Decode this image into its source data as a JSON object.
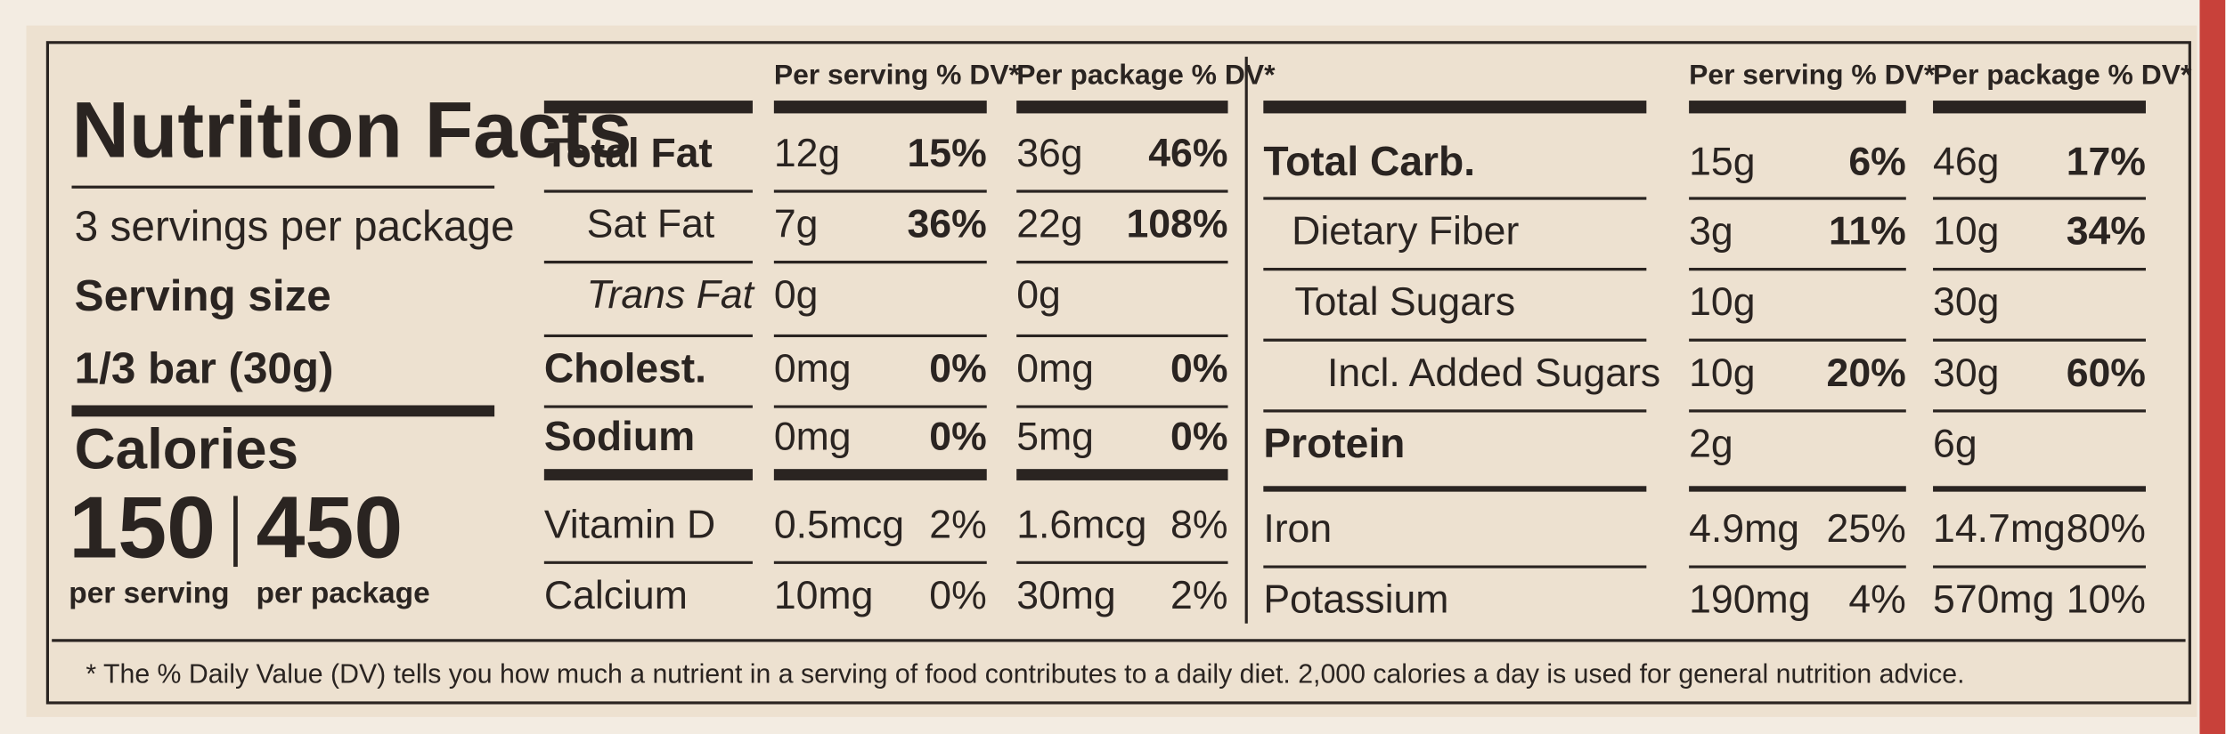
{
  "title": "Nutrition Facts",
  "servings": "3 servings per package",
  "serving_size_label": "Serving size",
  "serving_size": "1/3 bar (30g)",
  "calories_label": "Calories",
  "calories": [
    {
      "amount": "150",
      "basis": "per serving"
    },
    {
      "amount": "450",
      "basis": "per package"
    }
  ],
  "left_table": {
    "headers": [
      "Per serving % DV*",
      "Per package % DV*"
    ],
    "rows": [
      {
        "name": "Total Fat",
        "serving": [
          "12g",
          "15%"
        ],
        "package": [
          "36g",
          "46%"
        ]
      },
      {
        "name": "Sat Fat",
        "serving": [
          "7g",
          "36%"
        ],
        "package": [
          "22g",
          "108%"
        ]
      },
      {
        "name": "Trans Fat",
        "serving": [
          "0g"
        ],
        "package": [
          "0g"
        ]
      },
      {
        "name": "Cholest.",
        "serving": [
          "0mg",
          "0%"
        ],
        "package": [
          "0mg",
          "0%"
        ]
      },
      {
        "name": "Sodium",
        "serving": [
          "0mg",
          "0%"
        ],
        "package": [
          "5mg",
          "0%"
        ]
      },
      {
        "name": "Vitamin D",
        "serving": [
          "0.5mcg",
          "2%"
        ],
        "package": [
          "1.6mcg",
          "8%"
        ]
      },
      {
        "name": "Calcium",
        "serving": [
          "10mg",
          "0%"
        ],
        "package": [
          "30mg",
          "2%"
        ]
      }
    ]
  },
  "right_table": {
    "headers": [
      "Per serving % DV*",
      "Per package % DV*"
    ],
    "rows": [
      {
        "name": "Total Carb.",
        "serving": [
          "15g",
          "6%"
        ],
        "package": [
          "46g",
          "17%"
        ]
      },
      {
        "name": "Dietary Fiber",
        "serving": [
          "3g",
          "11%"
        ],
        "package": [
          "10g",
          "34%"
        ]
      },
      {
        "name": "Total Sugars",
        "serving": [
          "10g"
        ],
        "package": [
          "30g"
        ]
      },
      {
        "name": "Incl. Added Sugars",
        "serving": [
          "10g",
          "20%"
        ],
        "package": [
          "30g",
          "60%"
        ]
      },
      {
        "name": "Protein",
        "serving": [
          "2g"
        ],
        "package": [
          "6g"
        ]
      },
      {
        "name": "Iron",
        "serving": [
          "4.9mg",
          "25%"
        ],
        "package": [
          "14.7mg",
          "80%"
        ]
      },
      {
        "name": "Potassium",
        "serving": [
          "190mg",
          "4%"
        ],
        "package": [
          "570mg",
          "10%"
        ]
      }
    ]
  },
  "footnote": "* The % Daily Value (DV) tells you how much a nutrient in a serving of food contributes to a daily diet. 2,000 calories a day is used for general nutrition advice."
}
